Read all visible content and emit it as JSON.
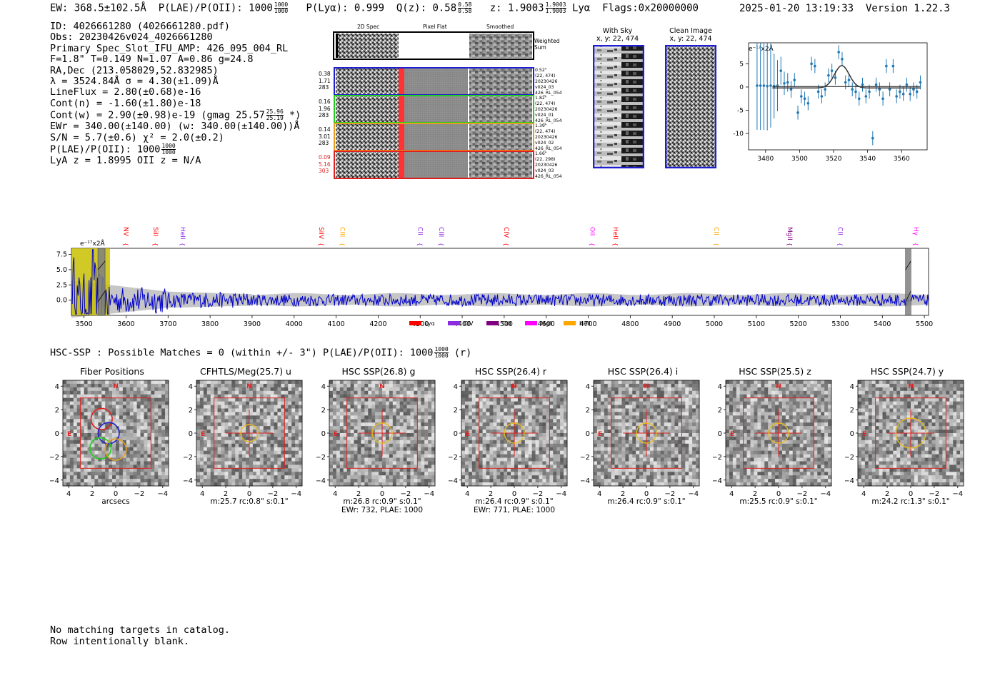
{
  "header": {
    "ew": "EW: 368.5±102.5Å",
    "plae": "P(LAE)/P(OII): 1000",
    "plae_hi": "1000",
    "plae_lo": "1000",
    "plya": "P(Lyα): 0.999",
    "qz": "Q(z): 0.58",
    "qz_hi": "0.58",
    "qz_lo": "0.58",
    "z": "z: 1.9003",
    "z_hi": "1.9003",
    "z_lo": "1.9003",
    "lya": "Lyα",
    "flags": "Flags:0x20000000",
    "datetime": "2025-01-20 13:19:33",
    "version": "Version 1.22.3"
  },
  "info": {
    "id": "ID: 4026661280 (4026661280.pdf)",
    "obs": "Obs: 20230426v024_4026661280",
    "primary": "Primary Spec_Slot_IFU_AMP: 426_095_004_RL",
    "params": "F=1.8\"  T=0.149  N=1.07  A=0.86  g=24.8",
    "radec": "RA,Dec (213.058029,52.832985)",
    "lambda": "λ = 3524.84Å   σ = 4.30(±1.09)Å",
    "lineflux": "LineFlux = 2.80(±0.68)e-16",
    "contn": "Cont(n) = -1.60(±1.80)e-18",
    "contw": "Cont(w) = 2.90(±0.98)e-19 (gmag 25.57",
    "contw_hi": "25.96",
    "contw_lo": "25.19",
    "contw_end": "*)",
    "ewr": "EWr = 340.00(±140.00) (w: 340.00(±140.00))Å",
    "sn": "S/N = 5.7(±0.6)  χ² = 2.0(±0.2)",
    "plae": "P(LAE)/P(OII): 1000",
    "plae_hi": "1000",
    "plae_lo": "1000",
    "zline": "LyA z = 1.8995  OII z = N/A"
  },
  "spec2d": {
    "col_titles": [
      "2D Spec",
      "Pixel Flat",
      "Smoothed"
    ],
    "weighted_label": "Weighted Sum",
    "rows": [
      {
        "left": [
          "0.38",
          "1.71",
          "283"
        ],
        "right": [
          "0.52\"",
          "(22, 474)",
          "20230426",
          "v024_03",
          "426_RL_054"
        ],
        "color": "#1f1fd0",
        "left_color": "#000000"
      },
      {
        "left": [
          "0.16",
          "1.96",
          "283"
        ],
        "right": [
          "1.82\"",
          "(22, 474)",
          "20230426",
          "v024_01",
          "426_RL_054"
        ],
        "color": "#22cc22",
        "left_color": "#000000"
      },
      {
        "left": [
          "0.14",
          "3.01",
          "283"
        ],
        "right": [
          "1.39\"",
          "(22, 474)",
          "20230426",
          "v024_02",
          "426_RL_054"
        ],
        "color": "#e8a020",
        "left_color": "#000000"
      },
      {
        "left": [
          "0.09",
          "5.16",
          "303"
        ],
        "right": [
          "1.66\"",
          "(22, 298)",
          "20230426",
          "v024_03",
          "426_RL_054"
        ],
        "color": "#e02020",
        "left_color": "#e02020"
      }
    ]
  },
  "sky": {
    "with_sky_title": "With Sky",
    "with_sky_xy": "x, y: 22, 474",
    "clean_title": "Clean Image",
    "clean_xy": "x, y: 22, 474"
  },
  "colors": {
    "spectrum": "#0000cc",
    "fit_points": "#1f77b4",
    "band": "#c0c0c0",
    "yellow": "#c8c000",
    "lya": "#ff0000",
    "civ": "#8a2be2",
    "ciii": "#800080",
    "mgii": "#ff00ff",
    "heii": "#ffa500"
  },
  "chart_data": [
    {
      "type": "scatter",
      "name": "line-fit",
      "ylabel_top": "e⁻¹⁷x2Å",
      "xlim": [
        3470,
        3575
      ],
      "ylim": [
        -13.5,
        9.5
      ],
      "xticks": [
        3480,
        3500,
        3520,
        3540,
        3560
      ],
      "yticks": [
        5,
        0,
        -5,
        -10
      ],
      "points": [
        {
          "x": 3475,
          "y": 0.3,
          "e": 9.5
        },
        {
          "x": 3477,
          "y": 0.3,
          "e": 9.5
        },
        {
          "x": 3479,
          "y": 0.3,
          "e": 9.5
        },
        {
          "x": 3481,
          "y": 0.2,
          "e": 9.5
        },
        {
          "x": 3483,
          "y": 0.3,
          "e": 9.0
        },
        {
          "x": 3485,
          "y": 0.2,
          "e": 7.0
        },
        {
          "x": 3487,
          "y": 0.3,
          "e": 5.5
        },
        {
          "x": 3489,
          "y": 3.5,
          "e": 3.0
        },
        {
          "x": 3491,
          "y": 0.8,
          "e": 2.5
        },
        {
          "x": 3493,
          "y": 1.0,
          "e": 2.0
        },
        {
          "x": 3495,
          "y": -0.5,
          "e": 1.8
        },
        {
          "x": 3497,
          "y": 1.5,
          "e": 1.5
        },
        {
          "x": 3499,
          "y": -5.5,
          "e": 1.5
        },
        {
          "x": 3501,
          "y": -2.0,
          "e": 1.5
        },
        {
          "x": 3503,
          "y": -2.5,
          "e": 1.5
        },
        {
          "x": 3505,
          "y": -3.5,
          "e": 1.5
        },
        {
          "x": 3507,
          "y": 5.0,
          "e": 1.5
        },
        {
          "x": 3509,
          "y": 4.5,
          "e": 1.5
        },
        {
          "x": 3511,
          "y": -1.0,
          "e": 1.5
        },
        {
          "x": 3513,
          "y": -2.0,
          "e": 1.5
        },
        {
          "x": 3515,
          "y": -0.5,
          "e": 1.5
        },
        {
          "x": 3517,
          "y": 2.5,
          "e": 1.5
        },
        {
          "x": 3519,
          "y": 3.5,
          "e": 1.5
        },
        {
          "x": 3521,
          "y": 2.0,
          "e": 1.5
        },
        {
          "x": 3523,
          "y": 7.5,
          "e": 1.5
        },
        {
          "x": 3525,
          "y": 6.0,
          "e": 1.5
        },
        {
          "x": 3527,
          "y": 1.0,
          "e": 1.5
        },
        {
          "x": 3529,
          "y": 1.5,
          "e": 1.5
        },
        {
          "x": 3531,
          "y": -0.5,
          "e": 1.5
        },
        {
          "x": 3533,
          "y": -1.0,
          "e": 1.5
        },
        {
          "x": 3535,
          "y": -2.5,
          "e": 1.5
        },
        {
          "x": 3537,
          "y": 0.5,
          "e": 1.5
        },
        {
          "x": 3539,
          "y": -2.0,
          "e": 1.5
        },
        {
          "x": 3541,
          "y": -1.0,
          "e": 1.5
        },
        {
          "x": 3543,
          "y": -11.0,
          "e": 1.5
        },
        {
          "x": 3545,
          "y": 0.5,
          "e": 1.5
        },
        {
          "x": 3547,
          "y": -0.5,
          "e": 1.5
        },
        {
          "x": 3549,
          "y": -2.5,
          "e": 1.5
        },
        {
          "x": 3551,
          "y": 4.5,
          "e": 1.5
        },
        {
          "x": 3553,
          "y": -0.5,
          "e": 1.5
        },
        {
          "x": 3555,
          "y": 4.5,
          "e": 1.5
        },
        {
          "x": 3557,
          "y": -2.0,
          "e": 1.5
        },
        {
          "x": 3559,
          "y": -1.0,
          "e": 1.5
        },
        {
          "x": 3561,
          "y": -1.5,
          "e": 1.5
        },
        {
          "x": 3563,
          "y": 0.5,
          "e": 1.5
        },
        {
          "x": 3565,
          "y": -1.5,
          "e": 1.5
        },
        {
          "x": 3567,
          "y": -0.5,
          "e": 1.5
        },
        {
          "x": 3569,
          "y": -1.0,
          "e": 1.5
        },
        {
          "x": 3571,
          "y": 1.0,
          "e": 1.5
        }
      ],
      "fit": {
        "center": 3524.84,
        "sigma": 4.3,
        "amp": 4.8,
        "baseline": -0.2
      }
    },
    {
      "type": "line",
      "name": "full-spectrum",
      "xlim": [
        3470,
        5510
      ],
      "ylim": [
        -2.5,
        8.5
      ],
      "xticks": [
        3500,
        3600,
        3700,
        3800,
        3900,
        4000,
        4100,
        4200,
        4300,
        4400,
        4500,
        4600,
        4700,
        4800,
        4900,
        5000,
        5100,
        5200,
        5300,
        5400,
        5500
      ],
      "yticks": [
        7.5,
        5.0,
        2.5,
        0.0
      ],
      "ylabel_top": "e⁻¹⁷x2Å",
      "highlight_range": [
        3470,
        3560
      ],
      "masked_ranges": [
        [
          3533,
          3550
        ],
        [
          5455,
          5468
        ]
      ],
      "line_marks": [
        {
          "label": "NV",
          "x": 3590,
          "color": "#ff0000"
        },
        {
          "label": "SiII",
          "x": 3660,
          "color": "#ff0000"
        },
        {
          "label": "HeII",
          "x": 3725,
          "color": "#8a2be2"
        },
        {
          "label": "SiIV",
          "x": 4055,
          "color": "#ff0000"
        },
        {
          "label": "CIII",
          "x": 4105,
          "color": "#ffa500"
        },
        {
          "label": "CII",
          "x": 4290,
          "color": "#8a2be2"
        },
        {
          "label": "CIII",
          "x": 4340,
          "color": "#8a2be2"
        },
        {
          "label": "CIV",
          "x": 4495,
          "color": "#ff0000"
        },
        {
          "label": "OII",
          "x": 4700,
          "color": "#ff00ff"
        },
        {
          "label": "HeII",
          "x": 4755,
          "color": "#ff0000"
        },
        {
          "label": "CII",
          "x": 4995,
          "color": "#ffa500"
        },
        {
          "label": "MgII",
          "x": 5170,
          "color": "#800080"
        },
        {
          "label": "CII",
          "x": 5290,
          "color": "#8a2be2"
        },
        {
          "label": "Hγ",
          "x": 5470,
          "color": "#ff00ff"
        }
      ],
      "legend": [
        {
          "label": "Lyα",
          "color": "#ff0000"
        },
        {
          "label": "CIV",
          "color": "#8a2be2"
        },
        {
          "label": "CIII",
          "color": "#800080"
        },
        {
          "label": "MgII",
          "color": "#ff00ff"
        },
        {
          "label": "HeII",
          "color": "#ffa500"
        }
      ]
    }
  ],
  "hsc": {
    "heading": "HSC-SSP : Possible Matches = 0 (within +/- 3\")  P(LAE)/P(OII): 1000",
    "heading_hi": "1000",
    "heading_lo": "1000",
    "heading_end": "(r)",
    "ticks": [
      "4",
      "2",
      "0",
      "−2",
      "−4"
    ],
    "xticks": [
      "−4",
      "−2",
      "0",
      "2",
      "4"
    ],
    "north": "N",
    "east": "E",
    "cutouts": [
      {
        "title": "Fiber Positions",
        "lines": [
          "arcsecs"
        ],
        "kind": "fiber"
      },
      {
        "title": "CFHTLS/Meg(25.7) u",
        "lines": [
          "m:25.7 rc:0.8\"  s:0.1\""
        ],
        "kind": "cut",
        "r": 12
      },
      {
        "title": "HSC SSP(26.8) g",
        "lines": [
          "m:26.8 rc:0.9\"  s:0.1\"",
          "EWr: 732, PLAE: 1000"
        ],
        "kind": "cut",
        "r": 14
      },
      {
        "title": "HSC SSP(26.4) r",
        "lines": [
          "m:26.4 rc:0.9\"  s:0.1\"",
          "EWr: 771, PLAE: 1000"
        ],
        "kind": "cut",
        "r": 14
      },
      {
        "title": "HSC SSP(26.4) i",
        "lines": [
          "m:26.4 rc:0.9\"  s:0.1\""
        ],
        "kind": "cut",
        "r": 14
      },
      {
        "title": "HSC SSP(25.5) z",
        "lines": [
          "m:25.5 rc:0.9\"  s:0.1\""
        ],
        "kind": "cut",
        "r": 14
      },
      {
        "title": "HSC SSP(24.7) y",
        "lines": [
          "m:24.2 rc:1.3\"  s:0.1\""
        ],
        "kind": "cut",
        "r": 21
      }
    ]
  },
  "footer": {
    "line1": "No matching targets in catalog.",
    "line2": "Row intentionally blank."
  }
}
